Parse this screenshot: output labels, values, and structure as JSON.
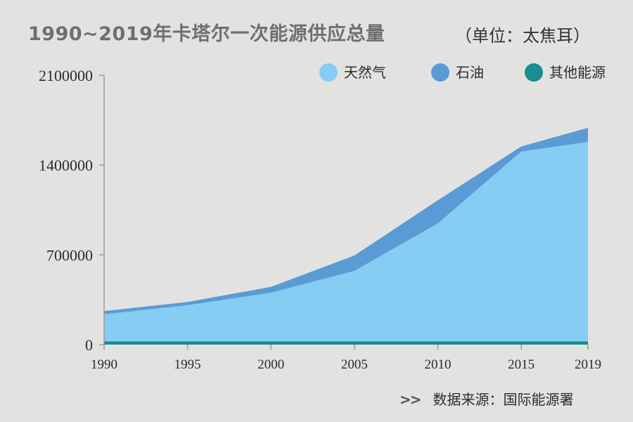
{
  "title": "1990~2019年卡塔尔一次能源供应总量",
  "unit_label": "（单位：太焦耳）",
  "source_arrow": ">>",
  "source_text": "数据来源：国际能源署",
  "colors": {
    "background": "#e2e3e1",
    "natural_gas": "#86cdf3",
    "oil": "#5b9bd5",
    "other": "#1a8c92",
    "axis": "#9a9a9a"
  },
  "chart_data": {
    "type": "area",
    "stacked": true,
    "x": [
      "1990",
      "1995",
      "2000",
      "2005",
      "2010",
      "2015",
      "2019"
    ],
    "ylim": [
      0,
      2100000
    ],
    "yticks": [
      "0",
      "700000",
      "1400000",
      "2100000"
    ],
    "legend_position": "top-right",
    "grid": false,
    "series": [
      {
        "name": "其他能源",
        "values": [
          25000,
          25000,
          25000,
          25000,
          25000,
          25000,
          25000
        ]
      },
      {
        "name": "天然气",
        "values": [
          212000,
          282000,
          380000,
          550000,
          920000,
          1480000,
          1555000
        ]
      },
      {
        "name": "石油",
        "values": [
          25000,
          25000,
          45000,
          120000,
          180000,
          40000,
          110000
        ]
      }
    ]
  }
}
